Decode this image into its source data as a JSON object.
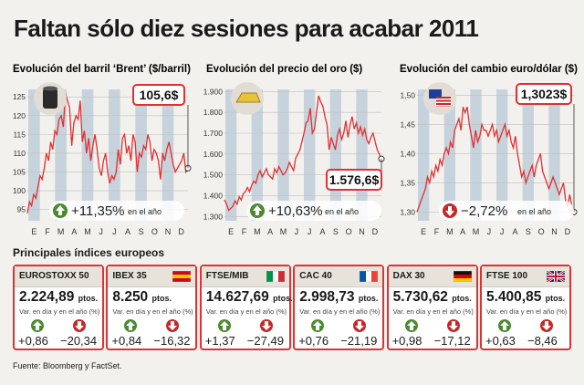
{
  "title": "Faltan sólo diez sesiones para acabar 2011",
  "months": [
    "E",
    "F",
    "M",
    "A",
    "M",
    "J",
    "J",
    "A",
    "S",
    "O",
    "N",
    "D"
  ],
  "chart_data": [
    {
      "type": "area",
      "title": "Evolución del barril ‘Brent’ ($/barril)",
      "icon": "oil-barrel-icon",
      "yticks": [
        "95",
        "100",
        "105",
        "110",
        "115",
        "120",
        "125"
      ],
      "ylim": [
        92,
        127
      ],
      "callout": "105,6$",
      "change": "+11,35%",
      "change_note": "en el año",
      "change_dir": "up",
      "color": "#e03030",
      "values": [
        94,
        97,
        96,
        99,
        98,
        101,
        104,
        103,
        106,
        110,
        108,
        113,
        111,
        116,
        115,
        119,
        120,
        117,
        126,
        124,
        122,
        112,
        118,
        120,
        119,
        124,
        113,
        116,
        110,
        114,
        108,
        112,
        115,
        111,
        106,
        104,
        108,
        110,
        105,
        102,
        104,
        103,
        105,
        111,
        107,
        114,
        115,
        110,
        112,
        108,
        115,
        113,
        105,
        110,
        109,
        112,
        111,
        115,
        113,
        108,
        111,
        110,
        108,
        103,
        110,
        108,
        111,
        113,
        110,
        107,
        105,
        106,
        107,
        108,
        110,
        105,
        106
      ]
    },
    {
      "type": "area",
      "title": "Evolución del precio del oro ($)",
      "icon": "gold-bar-icon",
      "yticks": [
        "1.300",
        "1.400",
        "1.500",
        "1.600",
        "1.700",
        "1.800",
        "1.900"
      ],
      "ylim": [
        1280,
        1910
      ],
      "callout": "1.576,6$",
      "change": "+10,63%",
      "change_note": "en el año",
      "change_dir": "up",
      "color": "#e03030",
      "values": [
        1380,
        1360,
        1330,
        1340,
        1350,
        1375,
        1360,
        1395,
        1380,
        1410,
        1420,
        1440,
        1420,
        1450,
        1470,
        1460,
        1500,
        1520,
        1490,
        1510,
        1530,
        1500,
        1490,
        1480,
        1530,
        1510,
        1540,
        1520,
        1500,
        1510,
        1530,
        1560,
        1540,
        1520,
        1580,
        1600,
        1620,
        1660,
        1700,
        1750,
        1760,
        1820,
        1700,
        1720,
        1800,
        1880,
        1850,
        1830,
        1780,
        1740,
        1620,
        1680,
        1650,
        1620,
        1690,
        1720,
        1670,
        1700,
        1760,
        1680,
        1740,
        1780,
        1720,
        1750,
        1700,
        1730,
        1690,
        1720,
        1670,
        1650,
        1680,
        1700,
        1660,
        1620,
        1600,
        1577
      ]
    },
    {
      "type": "area",
      "title": "Evolución del cambio euro/dólar ($)",
      "icon": "eu-us-flags-icon",
      "yticks": [
        "1,30",
        "1,35",
        "1,40",
        "1,45",
        "1,50"
      ],
      "ylim": [
        1.285,
        1.51
      ],
      "callout": "1,3023$",
      "change": "−2,72%",
      "change_note": "en el año",
      "change_dir": "down",
      "color": "#e03030",
      "values": [
        1.3,
        1.31,
        1.32,
        1.33,
        1.34,
        1.36,
        1.35,
        1.37,
        1.36,
        1.38,
        1.37,
        1.39,
        1.38,
        1.4,
        1.41,
        1.4,
        1.42,
        1.41,
        1.44,
        1.45,
        1.46,
        1.44,
        1.48,
        1.47,
        1.48,
        1.45,
        1.43,
        1.41,
        1.44,
        1.42,
        1.43,
        1.45,
        1.44,
        1.44,
        1.43,
        1.44,
        1.45,
        1.43,
        1.44,
        1.42,
        1.43,
        1.44,
        1.45,
        1.43,
        1.44,
        1.42,
        1.41,
        1.43,
        1.4,
        1.38,
        1.36,
        1.37,
        1.35,
        1.36,
        1.37,
        1.38,
        1.36,
        1.38,
        1.39,
        1.4,
        1.37,
        1.36,
        1.35,
        1.34,
        1.35,
        1.36,
        1.35,
        1.34,
        1.33,
        1.34,
        1.35,
        1.32,
        1.31,
        1.33,
        1.31,
        1.3
      ]
    }
  ],
  "indices_title": "Principales índices europeos",
  "indices": [
    {
      "name": "EUROSTOXX 50",
      "flag": "",
      "value": "2.224,89",
      "unit": "ptos.",
      "sub": "Var. en día y en el año (%)",
      "day": "+0,86",
      "day_dir": "up",
      "year": "−20,34",
      "year_dir": "down"
    },
    {
      "name": "IBEX 35",
      "flag": "spain-flag",
      "value": "8.250",
      "unit": "ptos.",
      "sub": "Var. en día y en el año (%)",
      "day": "+0,84",
      "day_dir": "up",
      "year": "−16,32",
      "year_dir": "down"
    },
    {
      "name": "FTSE/MIB",
      "flag": "italy-flag",
      "value": "14.627,69",
      "unit": "ptos.",
      "sub": "Var. en día y en el año (%)",
      "day": "+1,37",
      "day_dir": "up",
      "year": "−27,49",
      "year_dir": "down"
    },
    {
      "name": "CAC 40",
      "flag": "france-flag",
      "value": "2.998,73",
      "unit": "ptos.",
      "sub": "Var. en día y en el año (%)",
      "day": "+0,76",
      "day_dir": "up",
      "year": "−21,19",
      "year_dir": "down"
    },
    {
      "name": "DAX 30",
      "flag": "germany-flag",
      "value": "5.730,62",
      "unit": "ptos.",
      "sub": "Var. en día y en el año (%)",
      "day": "+0,98",
      "day_dir": "up",
      "year": "−17,12",
      "year_dir": "down"
    },
    {
      "name": "FTSE 100",
      "flag": "uk-flag",
      "value": "5.400,85",
      "unit": "ptos.",
      "sub": "Var. en día y en el año (%)",
      "day": "+0,63",
      "day_dir": "up",
      "year": "−8,46",
      "year_dir": "down"
    }
  ],
  "source": "Fuente: Bloomberg y FactSet."
}
